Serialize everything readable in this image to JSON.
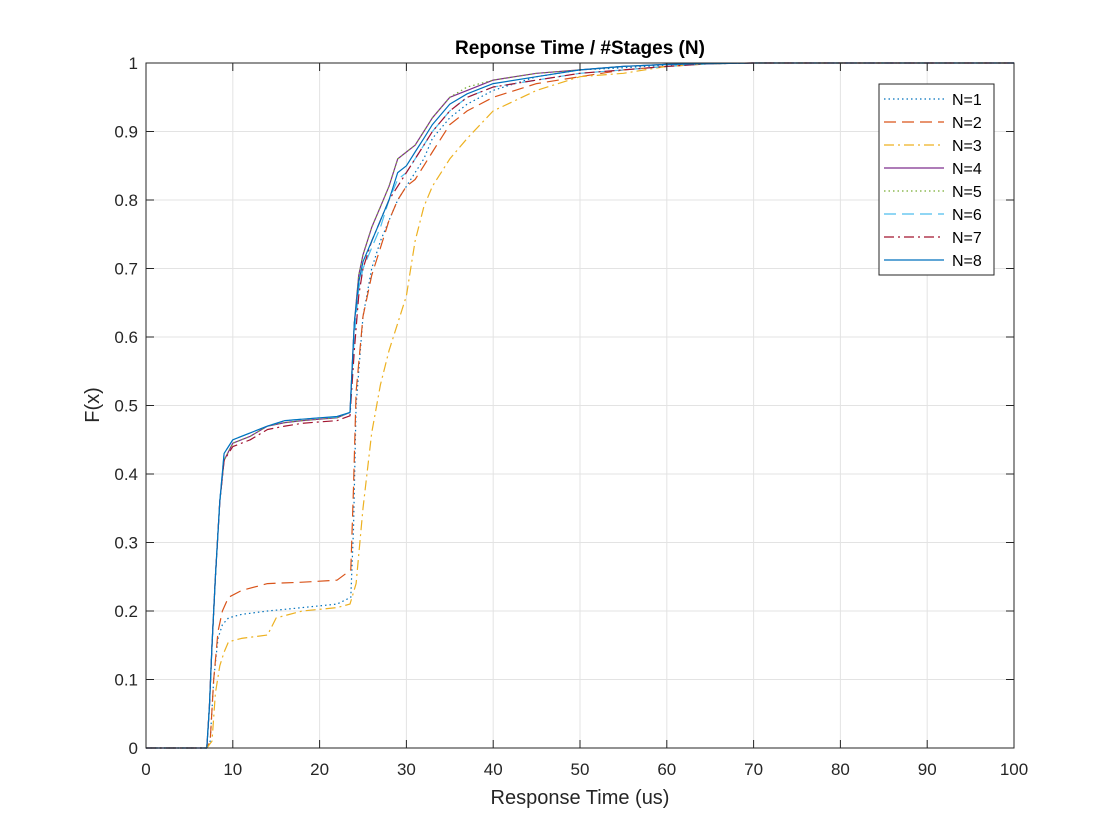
{
  "chart_data": {
    "type": "line",
    "title": "Reponse Time / #Stages (N)",
    "xlabel": "Response Time (us)",
    "ylabel": "F(x)",
    "xlim": [
      0,
      100
    ],
    "ylim": [
      0,
      1
    ],
    "xticks": [
      0,
      10,
      20,
      30,
      40,
      50,
      60,
      70,
      80,
      90,
      100
    ],
    "xtick_labels": [
      "0",
      "10",
      "20",
      "30",
      "40",
      "50",
      "60",
      "70",
      "80",
      "90",
      "100"
    ],
    "yticks": [
      0,
      0.1,
      0.2,
      0.3,
      0.4,
      0.5,
      0.6,
      0.7,
      0.8,
      0.9,
      1
    ],
    "ytick_labels": [
      "0",
      "0.1",
      "0.2",
      "0.3",
      "0.4",
      "0.5",
      "0.6",
      "0.7",
      "0.8",
      "0.9",
      "1"
    ],
    "grid": true,
    "legend_position": "top-right",
    "series": [
      {
        "name": "N=1",
        "color": "#0072BD",
        "dash": "dotted",
        "x": [
          0,
          7,
          7.4,
          7.8,
          8.3,
          8.8,
          9.5,
          11,
          14,
          18,
          22,
          23.6,
          23.9,
          24.2,
          25,
          26,
          27,
          28,
          29,
          30,
          31,
          32,
          33,
          35,
          37,
          40,
          45,
          50,
          55,
          60,
          65,
          70,
          80,
          100
        ],
        "y": [
          0,
          0,
          0.01,
          0.1,
          0.16,
          0.18,
          0.19,
          0.195,
          0.2,
          0.205,
          0.21,
          0.22,
          0.32,
          0.5,
          0.63,
          0.7,
          0.74,
          0.77,
          0.8,
          0.82,
          0.84,
          0.86,
          0.89,
          0.92,
          0.94,
          0.96,
          0.98,
          0.99,
          0.993,
          0.997,
          0.999,
          1,
          1,
          1
        ]
      },
      {
        "name": "N=2",
        "color": "#D95319",
        "dash": "dashed",
        "x": [
          0,
          7,
          7.4,
          7.8,
          8.3,
          8.8,
          9.5,
          11,
          14,
          18,
          22,
          23.6,
          23.9,
          24.2,
          25,
          26,
          27,
          28,
          29,
          30,
          31,
          32,
          33,
          35,
          37,
          40,
          45,
          50,
          55,
          60,
          65,
          70,
          80,
          100
        ],
        "y": [
          0,
          0,
          0.01,
          0.1,
          0.17,
          0.2,
          0.22,
          0.23,
          0.24,
          0.242,
          0.245,
          0.26,
          0.38,
          0.52,
          0.63,
          0.69,
          0.73,
          0.77,
          0.8,
          0.82,
          0.83,
          0.85,
          0.87,
          0.91,
          0.93,
          0.95,
          0.97,
          0.98,
          0.99,
          0.995,
          0.999,
          1,
          1,
          1
        ]
      },
      {
        "name": "N=3",
        "color": "#EDB120",
        "dash": "dashdot",
        "x": [
          0,
          7,
          7.6,
          8,
          8.5,
          9,
          9.5,
          11,
          14,
          15,
          18,
          22,
          23.5,
          24.2,
          25,
          26,
          27,
          28,
          29,
          30,
          30.5,
          31,
          32,
          33,
          35,
          37,
          40,
          45,
          50,
          55,
          60,
          65,
          70,
          80,
          100
        ],
        "y": [
          0,
          0,
          0.01,
          0.08,
          0.12,
          0.14,
          0.155,
          0.16,
          0.165,
          0.19,
          0.2,
          0.205,
          0.21,
          0.24,
          0.35,
          0.46,
          0.53,
          0.58,
          0.62,
          0.66,
          0.7,
          0.74,
          0.79,
          0.82,
          0.86,
          0.89,
          0.93,
          0.96,
          0.98,
          0.985,
          0.995,
          0.999,
          1,
          1,
          1
        ]
      },
      {
        "name": "N=4",
        "color": "#7E2F8E",
        "dash": "solid",
        "x": [
          0,
          7,
          7.3,
          7.6,
          8,
          8.5,
          9,
          10,
          12,
          14,
          16,
          18,
          20,
          22,
          23.5,
          24,
          24.5,
          25,
          26,
          27,
          28,
          29,
          30,
          31,
          32,
          33,
          35,
          37,
          40,
          45,
          50,
          55,
          60,
          65,
          70,
          80,
          100
        ],
        "y": [
          0,
          0,
          0.06,
          0.15,
          0.25,
          0.36,
          0.42,
          0.445,
          0.455,
          0.47,
          0.475,
          0.478,
          0.48,
          0.482,
          0.49,
          0.62,
          0.69,
          0.72,
          0.76,
          0.79,
          0.82,
          0.86,
          0.87,
          0.88,
          0.9,
          0.92,
          0.95,
          0.96,
          0.975,
          0.985,
          0.99,
          0.995,
          0.998,
          0.999,
          1,
          1,
          1
        ]
      },
      {
        "name": "N=5",
        "color": "#77AC30",
        "dash": "dotted",
        "x": [
          0,
          7,
          7.3,
          7.6,
          8,
          8.5,
          9,
          10,
          12,
          14,
          16,
          18,
          20,
          22,
          23.5,
          24,
          24.5,
          25,
          26,
          27,
          28,
          29,
          30,
          31,
          32,
          33,
          35,
          37,
          40,
          45,
          50,
          55,
          60,
          65,
          70,
          80,
          100
        ],
        "y": [
          0,
          0,
          0.06,
          0.15,
          0.25,
          0.36,
          0.42,
          0.445,
          0.455,
          0.47,
          0.475,
          0.478,
          0.48,
          0.482,
          0.49,
          0.62,
          0.69,
          0.72,
          0.76,
          0.79,
          0.82,
          0.86,
          0.87,
          0.88,
          0.9,
          0.92,
          0.95,
          0.965,
          0.975,
          0.985,
          0.99,
          0.995,
          0.998,
          0.999,
          1,
          1,
          1
        ]
      },
      {
        "name": "N=6",
        "color": "#4DBEEE",
        "dash": "dashed",
        "x": [
          0,
          7,
          7.3,
          7.6,
          8,
          8.5,
          9,
          10,
          12,
          14,
          16,
          18,
          20,
          22,
          23.5,
          24,
          24.5,
          25,
          26,
          27,
          28,
          29,
          30,
          31,
          32,
          33,
          35,
          37,
          40,
          45,
          50,
          55,
          60,
          65,
          70,
          80,
          100
        ],
        "y": [
          0,
          0,
          0.06,
          0.15,
          0.25,
          0.36,
          0.43,
          0.45,
          0.46,
          0.47,
          0.478,
          0.48,
          0.482,
          0.483,
          0.49,
          0.6,
          0.67,
          0.7,
          0.73,
          0.76,
          0.8,
          0.83,
          0.84,
          0.86,
          0.88,
          0.9,
          0.93,
          0.95,
          0.965,
          0.975,
          0.985,
          0.99,
          0.995,
          0.999,
          1,
          1,
          1
        ]
      },
      {
        "name": "N=7",
        "color": "#A2142F",
        "dash": "dashdot",
        "x": [
          0,
          7,
          7.3,
          7.6,
          8,
          8.5,
          9,
          10,
          12,
          14,
          16,
          18,
          20,
          22,
          23.5,
          24,
          24.5,
          25,
          26,
          27,
          28,
          29,
          30,
          31,
          32,
          33,
          35,
          37,
          40,
          45,
          50,
          55,
          60,
          65,
          70,
          80,
          100
        ],
        "y": [
          0,
          0,
          0.06,
          0.15,
          0.25,
          0.36,
          0.42,
          0.44,
          0.45,
          0.465,
          0.47,
          0.474,
          0.476,
          0.478,
          0.485,
          0.58,
          0.66,
          0.7,
          0.74,
          0.77,
          0.8,
          0.82,
          0.84,
          0.86,
          0.88,
          0.9,
          0.93,
          0.95,
          0.965,
          0.975,
          0.985,
          0.99,
          0.995,
          0.999,
          1,
          1,
          1
        ]
      },
      {
        "name": "N=8",
        "color": "#0072BD",
        "dash": "solid",
        "x": [
          0,
          7,
          7.3,
          7.6,
          8,
          8.5,
          9,
          10,
          12,
          14,
          16,
          18,
          20,
          22,
          23.5,
          24,
          24.5,
          25,
          26,
          27,
          28,
          29,
          30,
          31,
          32,
          33,
          35,
          37,
          40,
          45,
          50,
          55,
          60,
          65,
          70,
          80,
          100
        ],
        "y": [
          0,
          0,
          0.06,
          0.15,
          0.25,
          0.36,
          0.43,
          0.45,
          0.46,
          0.47,
          0.478,
          0.48,
          0.482,
          0.484,
          0.49,
          0.62,
          0.68,
          0.71,
          0.74,
          0.77,
          0.8,
          0.84,
          0.85,
          0.87,
          0.89,
          0.91,
          0.94,
          0.955,
          0.97,
          0.98,
          0.99,
          0.995,
          0.998,
          0.999,
          1,
          1,
          1
        ]
      }
    ]
  }
}
